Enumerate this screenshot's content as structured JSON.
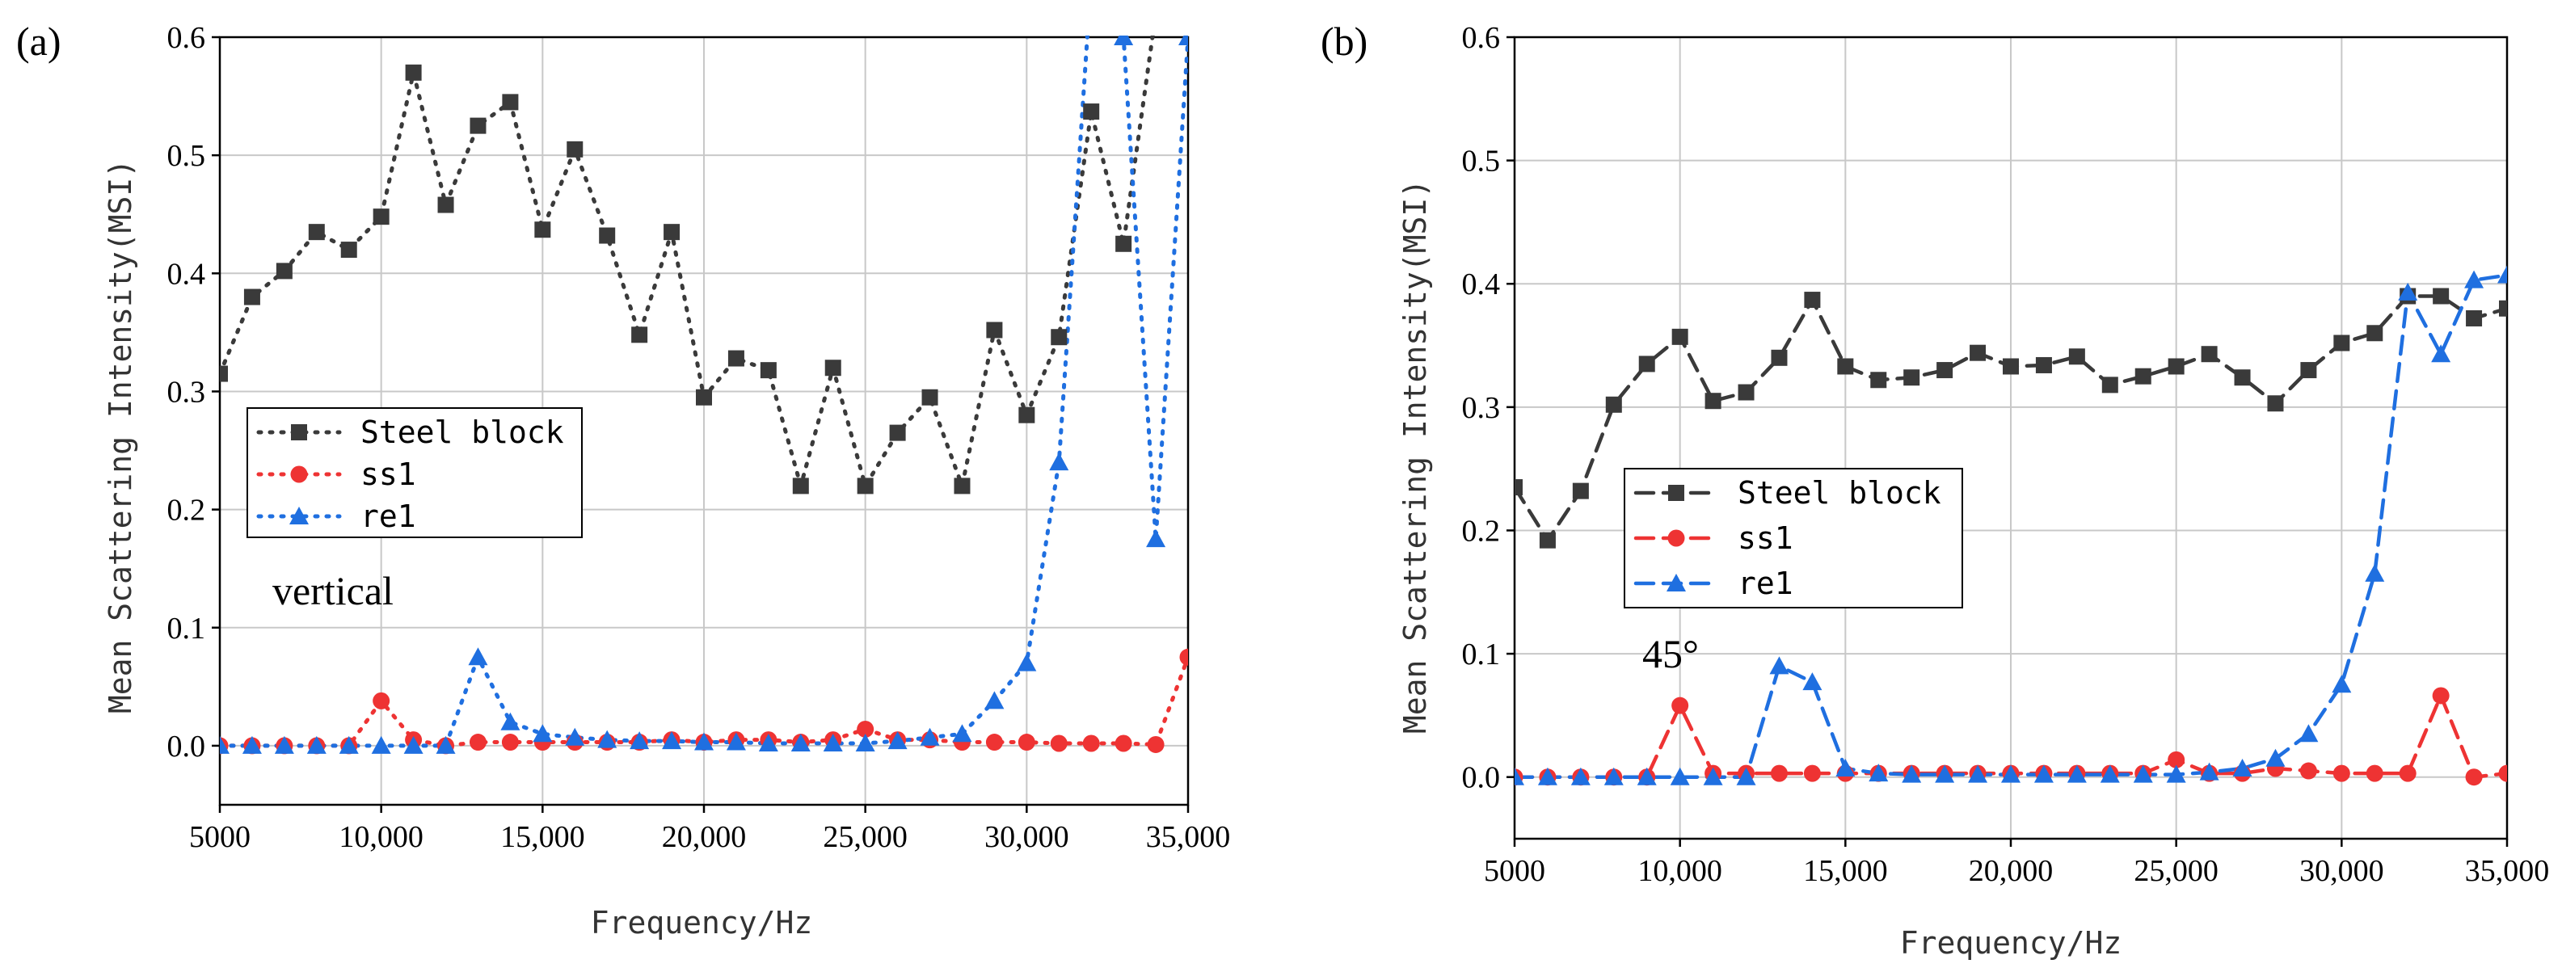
{
  "colors": {
    "steel": "#3a3a3a",
    "ss1": "#ee3333",
    "re1": "#1f6fe0",
    "grid": "#c8c8c8"
  },
  "chart_data": [
    {
      "type": "line",
      "panel_label": "(a)",
      "annotation": "vertical",
      "xlabel": "Frequency/Hz",
      "ylabel": "Mean Scattering Intensity(MSI)",
      "xlim": [
        5000,
        35000
      ],
      "ylim": [
        -0.05,
        0.6
      ],
      "xticks": [
        5000,
        10000,
        15000,
        20000,
        25000,
        30000,
        35000
      ],
      "xtick_labels": [
        "5000",
        "10,000",
        "15,000",
        "20,000",
        "25,000",
        "30,000",
        "35,000"
      ],
      "yticks": [
        0.0,
        0.1,
        0.2,
        0.3,
        0.4,
        0.5,
        0.6
      ],
      "ytick_labels": [
        "0.0",
        "0.1",
        "0.2",
        "0.3",
        "0.4",
        "0.5",
        "0.6"
      ],
      "grid": true,
      "line_style": "dotted",
      "legend": [
        "Steel block",
        "ss1",
        "re1"
      ],
      "x": [
        5000,
        6000,
        7000,
        8000,
        9000,
        10000,
        11000,
        12000,
        13000,
        14000,
        15000,
        16000,
        17000,
        18000,
        19000,
        20000,
        21000,
        22000,
        23000,
        24000,
        25000,
        26000,
        27000,
        28000,
        29000,
        30000,
        31000,
        32000,
        33000,
        34000,
        35000
      ],
      "series": [
        {
          "name": "Steel block",
          "marker": "square",
          "values": [
            0.315,
            0.38,
            0.402,
            0.435,
            0.42,
            0.448,
            0.57,
            0.458,
            0.525,
            0.545,
            0.437,
            0.505,
            0.432,
            0.348,
            0.435,
            0.295,
            0.328,
            0.318,
            0.22,
            0.32,
            0.22,
            0.265,
            0.295,
            0.22,
            0.352,
            0.28,
            0.346,
            0.537,
            0.425,
            0.62,
            null
          ]
        },
        {
          "name": "ss1",
          "marker": "circle",
          "values": [
            0.0,
            0.0,
            0.0,
            0.0,
            0.0,
            0.038,
            0.005,
            0.0,
            0.003,
            0.003,
            0.003,
            0.003,
            0.003,
            0.003,
            0.005,
            0.003,
            0.005,
            0.005,
            0.003,
            0.005,
            0.014,
            0.005,
            0.005,
            0.003,
            0.003,
            0.003,
            0.002,
            0.002,
            0.002,
            0.001,
            0.075
          ]
        },
        {
          "name": "re1",
          "marker": "triangle",
          "values": [
            0.0,
            0.0,
            0.0,
            0.0,
            0.0,
            0.0,
            0.0,
            0.0,
            0.075,
            0.02,
            0.01,
            0.007,
            0.005,
            0.004,
            0.004,
            0.003,
            0.003,
            0.002,
            0.002,
            0.002,
            0.002,
            0.004,
            0.007,
            0.01,
            0.038,
            0.07,
            0.24,
            0.65,
            0.6,
            0.175,
            0.6
          ]
        }
      ]
    },
    {
      "type": "line",
      "panel_label": "(b)",
      "annotation": "45°",
      "xlabel": "Frequency/Hz",
      "ylabel": "Mean Scattering Intensity(MSI)",
      "xlim": [
        5000,
        35000
      ],
      "ylim": [
        -0.05,
        0.6
      ],
      "xticks": [
        5000,
        10000,
        15000,
        20000,
        25000,
        30000,
        35000
      ],
      "xtick_labels": [
        "5000",
        "10,000",
        "15,000",
        "20,000",
        "25,000",
        "30,000",
        "35,000"
      ],
      "yticks": [
        0.0,
        0.1,
        0.2,
        0.3,
        0.4,
        0.5,
        0.6
      ],
      "ytick_labels": [
        "0.0",
        "0.1",
        "0.2",
        "0.3",
        "0.4",
        "0.5",
        "0.6"
      ],
      "grid": true,
      "line_style": "dashed",
      "legend": [
        "Steel block",
        "ss1",
        "re1"
      ],
      "x": [
        5000,
        6000,
        7000,
        8000,
        9000,
        10000,
        11000,
        12000,
        13000,
        14000,
        15000,
        16000,
        17000,
        18000,
        19000,
        20000,
        21000,
        22000,
        23000,
        24000,
        25000,
        26000,
        27000,
        28000,
        29000,
        30000,
        31000,
        32000,
        33000,
        34000,
        35000
      ],
      "series": [
        {
          "name": "Steel block",
          "marker": "square",
          "values": [
            0.235,
            0.192,
            0.232,
            0.302,
            0.335,
            0.357,
            0.305,
            0.312,
            0.34,
            0.387,
            0.333,
            0.322,
            0.324,
            0.33,
            0.344,
            0.333,
            0.334,
            0.341,
            0.318,
            0.325,
            0.333,
            0.343,
            0.324,
            0.303,
            0.33,
            0.352,
            0.36,
            0.39,
            0.39,
            0.372,
            0.38
          ]
        },
        {
          "name": "ss1",
          "marker": "circle",
          "values": [
            0.0,
            0.0,
            0.0,
            0.0,
            0.0,
            0.058,
            0.003,
            0.003,
            0.003,
            0.003,
            0.003,
            0.003,
            0.003,
            0.003,
            0.003,
            0.003,
            0.003,
            0.003,
            0.003,
            0.003,
            0.014,
            0.003,
            0.003,
            0.007,
            0.005,
            0.003,
            0.003,
            0.003,
            0.066,
            0.0,
            0.003
          ]
        },
        {
          "name": "re1",
          "marker": "triangle",
          "values": [
            0.0,
            0.0,
            0.0,
            0.0,
            0.0,
            0.0,
            0.0,
            0.0,
            0.09,
            0.077,
            0.007,
            0.003,
            0.002,
            0.002,
            0.002,
            0.002,
            0.002,
            0.002,
            0.002,
            0.002,
            0.002,
            0.004,
            0.007,
            0.015,
            0.035,
            0.075,
            0.165,
            0.393,
            0.343,
            0.403,
            0.407
          ]
        }
      ]
    }
  ]
}
